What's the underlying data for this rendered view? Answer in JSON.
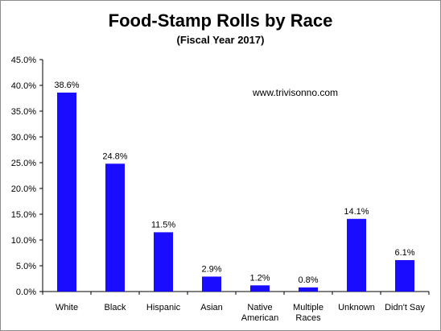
{
  "chart_data": {
    "type": "bar",
    "title": "Food-Stamp Rolls by Race",
    "subtitle": "(Fiscal Year 2017)",
    "annotation": "www.trivisonno.com",
    "categories": [
      [
        "White"
      ],
      [
        "Black"
      ],
      [
        "Hispanic"
      ],
      [
        "Asian"
      ],
      [
        "Native",
        "American"
      ],
      [
        "Multiple",
        "Races"
      ],
      [
        "Unknown"
      ],
      [
        "Didn't Say"
      ]
    ],
    "values": [
      38.6,
      24.8,
      11.5,
      2.9,
      1.2,
      0.8,
      14.1,
      6.1
    ],
    "data_labels": [
      "38.6%",
      "24.8%",
      "11.5%",
      "2.9%",
      "1.2%",
      "0.8%",
      "14.1%",
      "6.1%"
    ],
    "y_ticks": [
      "0.0%",
      "5.0%",
      "10.0%",
      "15.0%",
      "20.0%",
      "25.0%",
      "30.0%",
      "35.0%",
      "40.0%",
      "45.0%"
    ],
    "ylim": [
      0,
      45
    ],
    "bar_color": "#1a0dff",
    "grid": false,
    "legend": false
  }
}
